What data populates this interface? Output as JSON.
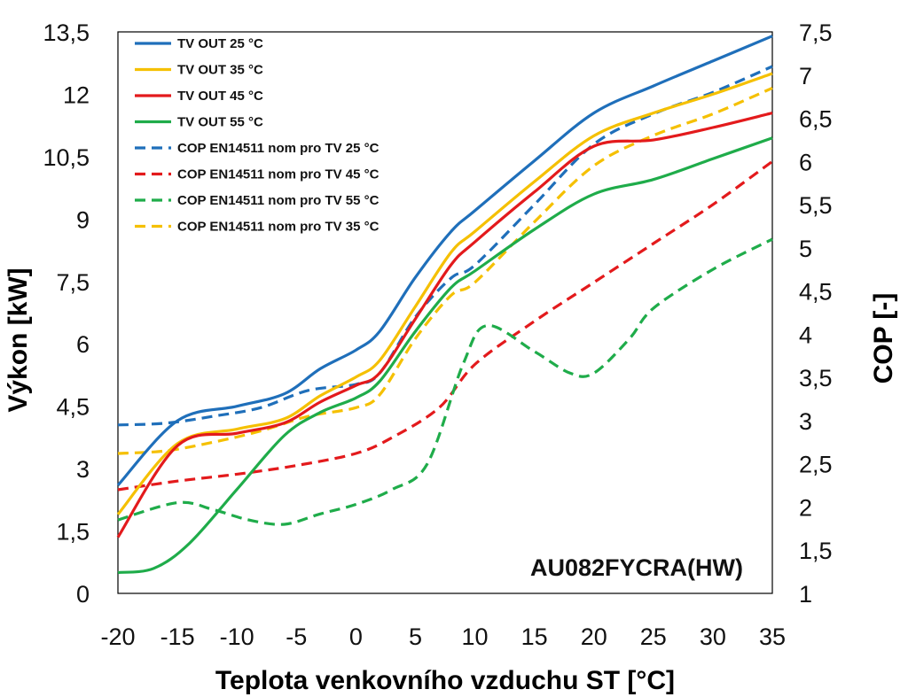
{
  "chart_data": {
    "type": "line",
    "annotation": "AU082FYCRA(HW)",
    "xlabel": "Teplota venkovního vzduchu ST [°C]",
    "ylabel": "Výkon [kW]",
    "y2label": "COP [-]",
    "xlim": [
      -20,
      35
    ],
    "ylim": [
      0,
      13.5
    ],
    "y2lim": [
      1,
      7.5
    ],
    "x_ticks": [
      "-20",
      "-15",
      "-10",
      "-5",
      "0",
      "5",
      "10",
      "15",
      "20",
      "25",
      "30",
      "35"
    ],
    "y_ticks": [
      "0",
      "1,5",
      "3",
      "4,5",
      "6",
      "7,5",
      "9",
      "10,5",
      "12",
      "13,5"
    ],
    "y2_ticks": [
      "1",
      "1,5",
      "2",
      "2,5",
      "3",
      "3,5",
      "4",
      "4,5",
      "5",
      "5,5",
      "6",
      "6,5",
      "7",
      "7,5"
    ],
    "grid": false,
    "legend_position": "top-left",
    "series": [
      {
        "name": "TV OUT 25 °C",
        "axis": "left",
        "color": "#1f6fba",
        "dash": "solid",
        "x": [
          -20,
          -15,
          -10,
          -6,
          -3,
          0,
          2,
          5,
          8,
          10,
          15,
          20,
          25,
          30,
          35
        ],
        "y": [
          2.6,
          4.15,
          4.5,
          4.8,
          5.4,
          5.85,
          6.3,
          7.6,
          8.7,
          9.2,
          10.4,
          11.55,
          12.2,
          12.8,
          13.4
        ]
      },
      {
        "name": "TV OUT 35 °C",
        "axis": "left",
        "color": "#f5c000",
        "dash": "solid",
        "x": [
          -20,
          -15,
          -10,
          -6,
          -3,
          0,
          2,
          5,
          8,
          10,
          15,
          20,
          25,
          30,
          35
        ],
        "y": [
          1.9,
          3.6,
          3.95,
          4.2,
          4.75,
          5.2,
          5.6,
          6.9,
          8.2,
          8.7,
          9.9,
          11.0,
          11.55,
          12.0,
          12.5
        ]
      },
      {
        "name": "TV OUT 45 °C",
        "axis": "left",
        "color": "#e31a1c",
        "dash": "solid",
        "x": [
          -20,
          -15,
          -10,
          -6,
          -3,
          0,
          2,
          5,
          8,
          10,
          15,
          20,
          25,
          30,
          35
        ],
        "y": [
          1.35,
          3.55,
          3.85,
          4.1,
          4.6,
          5.0,
          5.3,
          6.6,
          7.9,
          8.45,
          9.65,
          10.75,
          10.9,
          11.2,
          11.55
        ]
      },
      {
        "name": "TV OUT 55 °C",
        "axis": "left",
        "color": "#1fac4a",
        "dash": "solid",
        "x": [
          -20,
          -17,
          -14,
          -10,
          -6,
          -3,
          0,
          2,
          5,
          8,
          10,
          15,
          20,
          25,
          30,
          35
        ],
        "y": [
          0.5,
          0.6,
          1.2,
          2.5,
          3.8,
          4.35,
          4.7,
          5.1,
          6.3,
          7.35,
          7.75,
          8.75,
          9.6,
          9.95,
          10.45,
          10.95
        ]
      },
      {
        "name": "COP EN14511 nom pro TV 25 °C",
        "axis": "right",
        "color": "#1f6fba",
        "dash": "dashed",
        "x": [
          -20,
          -16,
          -12,
          -8,
          -4,
          0,
          2,
          5,
          8,
          10,
          15,
          20,
          25,
          30,
          35
        ],
        "y": [
          2.95,
          2.97,
          3.05,
          3.15,
          3.35,
          3.42,
          3.55,
          4.2,
          4.65,
          4.8,
          5.5,
          6.2,
          6.55,
          6.8,
          7.1
        ]
      },
      {
        "name": "COP EN14511 nom pro TV 45 °C",
        "axis": "right",
        "color": "#e31a1c",
        "dash": "dashed",
        "x": [
          -20,
          -15,
          -10,
          -5,
          0,
          3,
          7,
          10,
          15,
          20,
          25,
          30,
          35
        ],
        "y": [
          2.2,
          2.3,
          2.38,
          2.48,
          2.62,
          2.8,
          3.15,
          3.65,
          4.15,
          4.6,
          5.05,
          5.5,
          6.0
        ]
      },
      {
        "name": "COP EN14511 nom pro TV 55 °C",
        "axis": "right",
        "color": "#1fac4a",
        "dash": "dashed",
        "x": [
          -20,
          -15,
          -12,
          -9,
          -6,
          -3,
          0,
          3,
          6,
          9,
          11,
          15,
          18,
          20,
          23,
          25,
          30,
          35
        ],
        "y": [
          1.85,
          2.05,
          1.97,
          1.85,
          1.8,
          1.92,
          2.03,
          2.2,
          2.5,
          3.65,
          4.1,
          3.8,
          3.55,
          3.55,
          3.95,
          4.3,
          4.75,
          5.1
        ]
      },
      {
        "name": "COP EN14511 nom pro TV 35 °C",
        "axis": "right",
        "color": "#f5c000",
        "dash": "dashed",
        "x": [
          -20,
          -16,
          -12,
          -8,
          -4,
          0,
          2,
          5,
          8,
          10,
          15,
          20,
          25,
          30,
          35
        ],
        "y": [
          2.62,
          2.65,
          2.75,
          2.88,
          3.05,
          3.15,
          3.3,
          3.95,
          4.45,
          4.6,
          5.3,
          5.95,
          6.3,
          6.55,
          6.85
        ]
      }
    ]
  }
}
